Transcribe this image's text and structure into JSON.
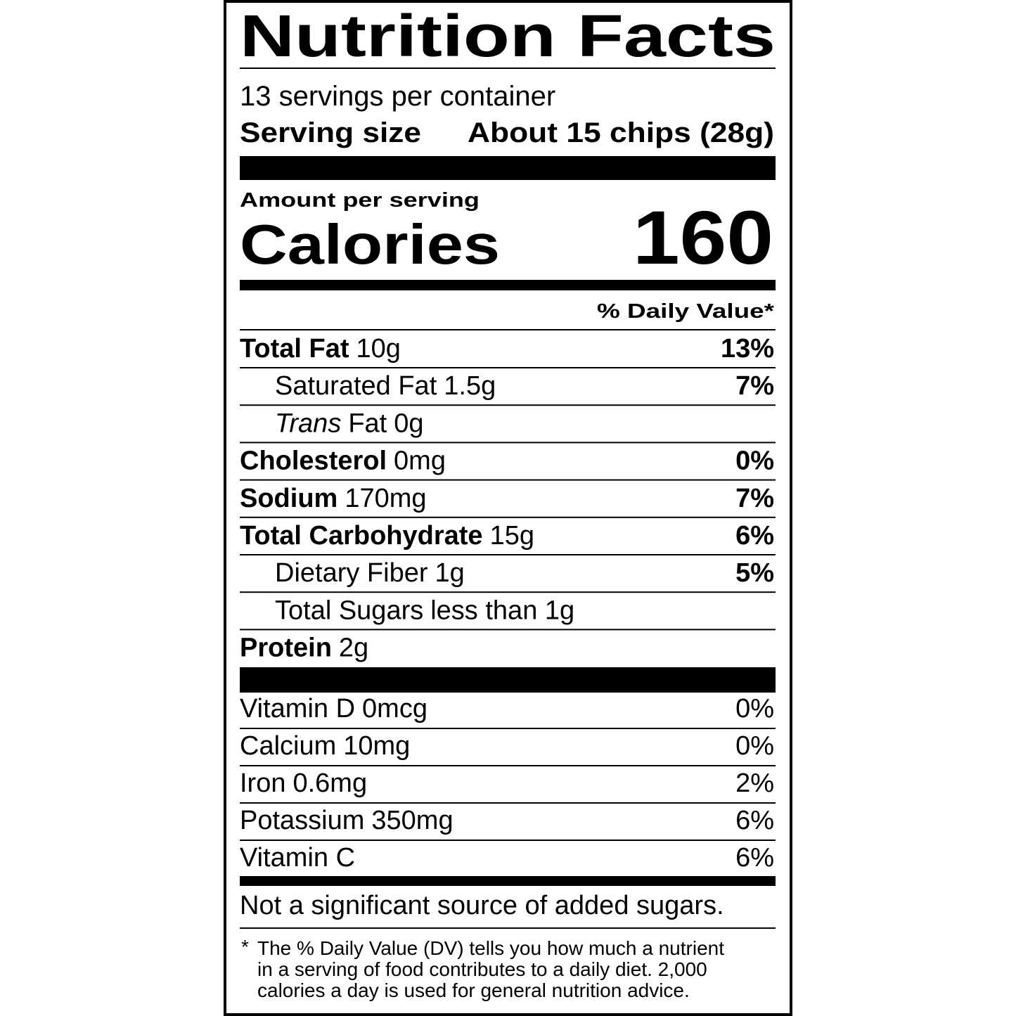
{
  "title": "Nutrition Facts",
  "servings": "13 servings per container",
  "serving_size": {
    "label": "Serving size",
    "value": "About 15 chips (28g)"
  },
  "amount_per_serving": "Amount per serving",
  "calories": {
    "label": "Calories",
    "value": "160"
  },
  "daily_value_header": "% Daily Value*",
  "nutrients": [
    {
      "name": "Total Fat",
      "amount": "10g",
      "dv": "13%"
    },
    {
      "name": "Saturated Fat",
      "amount": "1.5g",
      "dv": "7%"
    },
    {
      "italic": "Trans",
      "name": "Fat",
      "amount": "0g"
    },
    {
      "name": "Cholesterol",
      "amount": "0mg",
      "dv": "0%"
    },
    {
      "name": "Sodium",
      "amount": "170mg",
      "dv": "7%"
    },
    {
      "name": "Total Carbohydrate",
      "amount": "15g",
      "dv": "6%"
    },
    {
      "name": "Dietary Fiber",
      "amount": "1g",
      "dv": "5%"
    },
    {
      "name": "Total Sugars",
      "amount": "less than 1g"
    },
    {
      "name": "Protein",
      "amount": "2g"
    }
  ],
  "vitamins": [
    {
      "name": "Vitamin D",
      "amount": "0mcg",
      "dv": "0%"
    },
    {
      "name": "Calcium",
      "amount": "10mg",
      "dv": "0%"
    },
    {
      "name": "Iron",
      "amount": "0.6mg",
      "dv": "2%"
    },
    {
      "name": "Potassium",
      "amount": "350mg",
      "dv": "6%"
    },
    {
      "name": "Vitamin C",
      "dv": "6%"
    }
  ],
  "added_sugars_note": "Not a significant source of added sugars.",
  "footnote": {
    "mark": "*",
    "lines": [
      "The % Daily Value (DV) tells you how much a nutrient",
      "in a serving of food contributes to a daily diet. 2,000",
      "calories a day is used for general nutrition advice."
    ]
  }
}
